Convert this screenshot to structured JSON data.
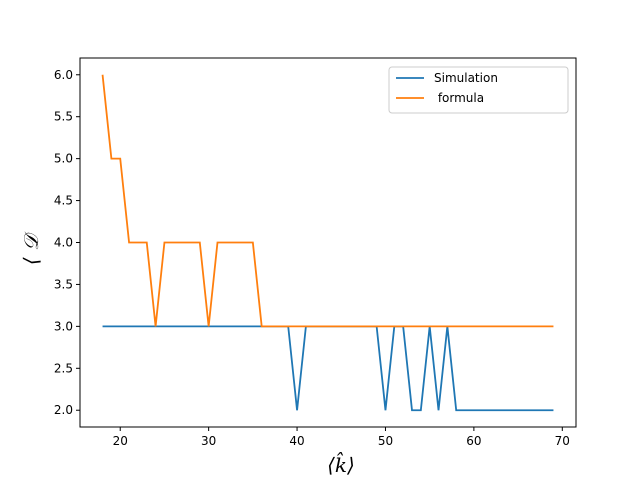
{
  "chart_data": {
    "type": "line",
    "title": "",
    "xlabel": "⟨k̂⟩",
    "ylabel": "⟨ 𝒟",
    "xlim": [
      15.45,
      71.55
    ],
    "ylim": [
      1.8,
      6.2
    ],
    "xticks": [
      20,
      30,
      40,
      50,
      60,
      70
    ],
    "yticks": [
      2.0,
      2.5,
      3.0,
      3.5,
      4.0,
      4.5,
      5.0,
      5.5,
      6.0
    ],
    "grid": false,
    "legend_position": "top-right",
    "series": [
      {
        "name": "Simulation",
        "color": "#1f77b4",
        "x": [
          18,
          19,
          20,
          21,
          22,
          23,
          24,
          25,
          26,
          27,
          28,
          29,
          30,
          31,
          32,
          33,
          34,
          35,
          36,
          37,
          38,
          39,
          40,
          41,
          42,
          43,
          44,
          45,
          46,
          47,
          48,
          49,
          50,
          51,
          52,
          53,
          54,
          55,
          56,
          57,
          58,
          59,
          60,
          61,
          62,
          63,
          64,
          65,
          66,
          67,
          68,
          69
        ],
        "y": [
          3,
          3,
          3,
          3,
          3,
          3,
          3,
          3,
          3,
          3,
          3,
          3,
          3,
          3,
          3,
          3,
          3,
          3,
          3,
          3,
          3,
          3,
          2,
          3,
          3,
          3,
          3,
          3,
          3,
          3,
          3,
          3,
          2,
          3,
          3,
          2,
          2,
          3,
          2,
          3,
          2,
          2,
          2,
          2,
          2,
          2,
          2,
          2,
          2,
          2,
          2,
          2
        ]
      },
      {
        "name": " formula",
        "color": "#ff7f0e",
        "x": [
          18,
          19,
          20,
          21,
          22,
          23,
          24,
          25,
          26,
          27,
          28,
          29,
          30,
          31,
          32,
          33,
          34,
          35,
          36,
          37,
          38,
          39,
          40,
          41,
          42,
          43,
          44,
          45,
          46,
          47,
          48,
          49,
          50,
          51,
          52,
          53,
          54,
          55,
          56,
          57,
          58,
          59,
          60,
          61,
          62,
          63,
          64,
          65,
          66,
          67,
          68,
          69
        ],
        "y": [
          6,
          5,
          5,
          4,
          4,
          4,
          3,
          4,
          4,
          4,
          4,
          4,
          3,
          4,
          4,
          4,
          4,
          4,
          3,
          3,
          3,
          3,
          3,
          3,
          3,
          3,
          3,
          3,
          3,
          3,
          3,
          3,
          3,
          3,
          3,
          3,
          3,
          3,
          3,
          3,
          3,
          3,
          3,
          3,
          3,
          3,
          3,
          3,
          3,
          3,
          3,
          3
        ]
      }
    ]
  }
}
